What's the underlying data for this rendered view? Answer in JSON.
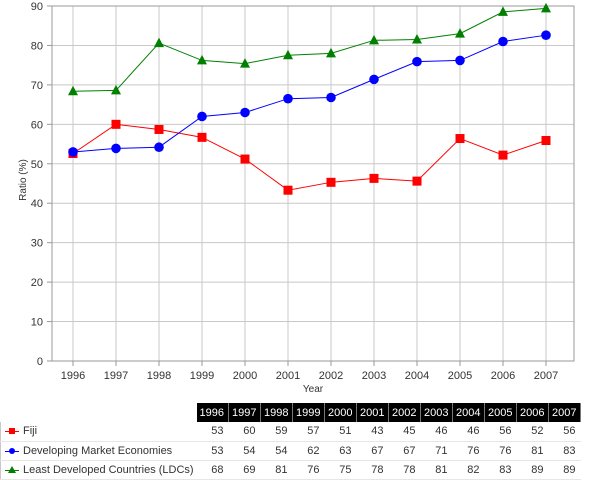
{
  "chart_data": {
    "type": "line",
    "title": "",
    "xlabel": "Year",
    "ylabel": "Ratio (%)",
    "ylim": [
      0,
      90
    ],
    "yticks": [
      0,
      10,
      20,
      30,
      40,
      50,
      60,
      70,
      80,
      90
    ],
    "grid": true,
    "legend": "table-bottom",
    "categories": [
      "1996",
      "1997",
      "1998",
      "1999",
      "2000",
      "2001",
      "2002",
      "2003",
      "2004",
      "2005",
      "2006",
      "2007"
    ],
    "series": [
      {
        "name": "Fiji",
        "color": "#ff0000",
        "marker": "square",
        "values": [
          52.6,
          60.0,
          58.7,
          56.7,
          51.2,
          43.3,
          45.3,
          46.3,
          45.6,
          56.4,
          52.2,
          55.9
        ],
        "table_values": [
          "53",
          "60",
          "59",
          "57",
          "51",
          "43",
          "45",
          "46",
          "46",
          "56",
          "52",
          "56"
        ]
      },
      {
        "name": "Developing Market Economies",
        "color": "#0000ff",
        "marker": "circle",
        "values": [
          53.0,
          53.9,
          54.2,
          62.0,
          63.0,
          66.5,
          66.8,
          71.4,
          75.9,
          76.2,
          81.0,
          82.6
        ],
        "table_values": [
          "53",
          "54",
          "54",
          "62",
          "63",
          "67",
          "67",
          "71",
          "76",
          "76",
          "81",
          "83"
        ]
      },
      {
        "name": "Least Developed Countries (LDCs)",
        "color": "#008000",
        "marker": "triangle",
        "values": [
          68.4,
          68.6,
          80.6,
          76.2,
          75.4,
          77.5,
          78.0,
          81.3,
          81.5,
          83.0,
          88.5,
          89.4
        ],
        "table_values": [
          "68",
          "69",
          "81",
          "76",
          "75",
          "78",
          "78",
          "81",
          "82",
          "83",
          "89",
          "89"
        ]
      }
    ]
  }
}
